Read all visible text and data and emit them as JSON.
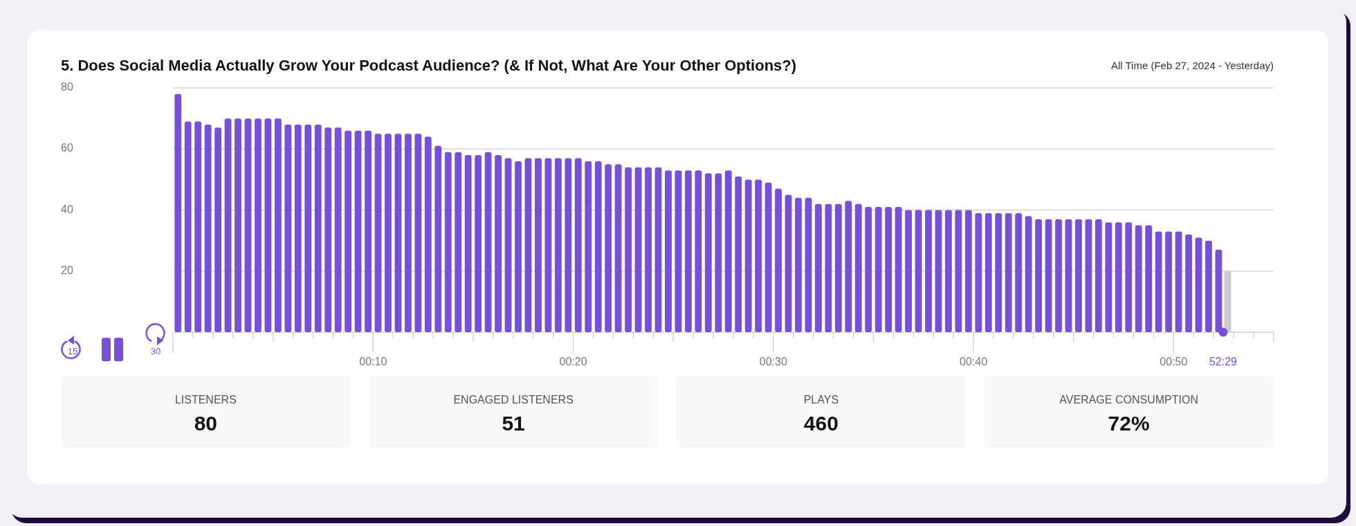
{
  "chart_data": {
    "type": "bar",
    "title": "5. Does Social Media Actually Grow Your Podcast Audience? (& If Not, What Are Your Other Options?)",
    "subtitle": "All Time (Feb 27, 2024 - Yesterday)",
    "x": [
      0.25,
      0.75,
      1.25,
      1.75,
      2.25,
      2.75,
      3.25,
      3.75,
      4.25,
      4.75,
      5.25,
      5.75,
      6.25,
      6.75,
      7.25,
      7.75,
      8.25,
      8.75,
      9.25,
      9.75,
      10.25,
      10.75,
      11.25,
      11.75,
      12.25,
      12.75,
      13.25,
      13.75,
      14.25,
      14.75,
      15.25,
      15.75,
      16.25,
      16.75,
      17.25,
      17.75,
      18.25,
      18.75,
      19.25,
      19.75,
      20.25,
      20.75,
      21.25,
      21.75,
      22.25,
      22.75,
      23.25,
      23.75,
      24.25,
      24.75,
      25.25,
      25.75,
      26.25,
      26.75,
      27.25,
      27.75,
      28.25,
      28.75,
      29.25,
      29.75,
      30.25,
      30.75,
      31.25,
      31.75,
      32.25,
      32.75,
      33.25,
      33.75,
      34.25,
      34.75,
      35.25,
      35.75,
      36.25,
      36.75,
      37.25,
      37.75,
      38.25,
      38.75,
      39.25,
      39.75,
      40.25,
      40.75,
      41.25,
      41.75,
      42.25,
      42.75,
      43.25,
      43.75,
      44.25,
      44.75,
      45.25,
      45.75,
      46.25,
      46.75,
      47.25,
      47.75,
      48.25,
      48.75,
      49.25,
      49.75,
      50.25,
      50.75,
      51.25,
      51.75,
      52.25,
      52.7
    ],
    "values": [
      78,
      69,
      69,
      68,
      67,
      70,
      70,
      70,
      70,
      70,
      70,
      68,
      68,
      68,
      68,
      67,
      67,
      66,
      66,
      66,
      65,
      65,
      65,
      65,
      65,
      64,
      61,
      59,
      59,
      58,
      58,
      59,
      58,
      57,
      56,
      57,
      57,
      57,
      57,
      57,
      57,
      56,
      56,
      55,
      55,
      54,
      54,
      54,
      54,
      53,
      53,
      53,
      53,
      52,
      52,
      53,
      51,
      50,
      50,
      49,
      47,
      45,
      44,
      44,
      42,
      42,
      42,
      43,
      42,
      41,
      41,
      41,
      41,
      40,
      40,
      40,
      40,
      40,
      40,
      40,
      39,
      39,
      39,
      39,
      39,
      38,
      37,
      37,
      37,
      37,
      37,
      37,
      37,
      36,
      36,
      36,
      35,
      35,
      33,
      33,
      33,
      32,
      31,
      30,
      27,
      20
    ],
    "colors": [
      "#7850d8",
      "#7850d8",
      "#7850d8",
      "#7850d8",
      "#7850d8",
      "#7850d8",
      "#7850d8",
      "#7850d8",
      "#7850d8",
      "#7850d8",
      "#7850d8",
      "#7850d8",
      "#7850d8",
      "#7850d8",
      "#7850d8",
      "#7850d8",
      "#7850d8",
      "#7850d8",
      "#7850d8",
      "#7850d8",
      "#7850d8",
      "#7850d8",
      "#7850d8",
      "#7850d8",
      "#7850d8",
      "#7850d8",
      "#7850d8",
      "#7850d8",
      "#7850d8",
      "#7850d8",
      "#7850d8",
      "#7850d8",
      "#7850d8",
      "#7850d8",
      "#7850d8",
      "#7850d8",
      "#7850d8",
      "#7850d8",
      "#7850d8",
      "#7850d8",
      "#7850d8",
      "#7850d8",
      "#7850d8",
      "#7850d8",
      "#7850d8",
      "#7850d8",
      "#7850d8",
      "#7850d8",
      "#7850d8",
      "#7850d8",
      "#7850d8",
      "#7850d8",
      "#7850d8",
      "#7850d8",
      "#7850d8",
      "#7850d8",
      "#7850d8",
      "#7850d8",
      "#7850d8",
      "#7850d8",
      "#7850d8",
      "#7850d8",
      "#7850d8",
      "#7850d8",
      "#7850d8",
      "#7850d8",
      "#7850d8",
      "#7850d8",
      "#7850d8",
      "#7850d8",
      "#7850d8",
      "#7850d8",
      "#7850d8",
      "#7850d8",
      "#7850d8",
      "#7850d8",
      "#7850d8",
      "#7850d8",
      "#7850d8",
      "#7850d8",
      "#7850d8",
      "#7850d8",
      "#7850d8",
      "#7850d8",
      "#7850d8",
      "#7850d8",
      "#7850d8",
      "#7850d8",
      "#7850d8",
      "#7850d8",
      "#7850d8",
      "#7850d8",
      "#7850d8",
      "#7850d8",
      "#7850d8",
      "#7850d8",
      "#7850d8",
      "#7850d8",
      "#7850d8",
      "#7850d8",
      "#7850d8",
      "#7850d8",
      "#7850d8",
      "#7850d8",
      "#7850d8",
      "#cccccc"
    ],
    "xlim": [
      0,
      55
    ],
    "xticks": [
      {
        "value": 1,
        "label": null
      },
      {
        "value": 2,
        "label": null
      },
      {
        "value": 3,
        "label": null
      },
      {
        "value": 4,
        "label": null
      },
      {
        "value": 5,
        "label": null
      },
      {
        "value": 6,
        "label": null
      },
      {
        "value": 7,
        "label": null
      },
      {
        "value": 8,
        "label": null
      },
      {
        "value": 9,
        "label": null
      },
      {
        "value": 10,
        "label": "00:10"
      },
      {
        "value": 11,
        "label": null
      },
      {
        "value": 12,
        "label": null
      },
      {
        "value": 13,
        "label": null
      },
      {
        "value": 14,
        "label": null
      },
      {
        "value": 15,
        "label": null
      },
      {
        "value": 16,
        "label": null
      },
      {
        "value": 17,
        "label": null
      },
      {
        "value": 18,
        "label": null
      },
      {
        "value": 19,
        "label": null
      },
      {
        "value": 20,
        "label": "00:20"
      },
      {
        "value": 21,
        "label": null
      },
      {
        "value": 22,
        "label": null
      },
      {
        "value": 23,
        "label": null
      },
      {
        "value": 24,
        "label": null
      },
      {
        "value": 25,
        "label": null
      },
      {
        "value": 26,
        "label": null
      },
      {
        "value": 27,
        "label": null
      },
      {
        "value": 28,
        "label": null
      },
      {
        "value": 29,
        "label": null
      },
      {
        "value": 30,
        "label": "00:30"
      },
      {
        "value": 31,
        "label": null
      },
      {
        "value": 32,
        "label": null
      },
      {
        "value": 33,
        "label": null
      },
      {
        "value": 34,
        "label": null
      },
      {
        "value": 35,
        "label": null
      },
      {
        "value": 36,
        "label": null
      },
      {
        "value": 37,
        "label": null
      },
      {
        "value": 38,
        "label": null
      },
      {
        "value": 39,
        "label": null
      },
      {
        "value": 40,
        "label": "00:40"
      },
      {
        "value": 41,
        "label": null
      },
      {
        "value": 42,
        "label": null
      },
      {
        "value": 43,
        "label": null
      },
      {
        "value": 44,
        "label": null
      },
      {
        "value": 45,
        "label": null
      },
      {
        "value": 46,
        "label": null
      },
      {
        "value": 47,
        "label": null
      },
      {
        "value": 48,
        "label": null
      },
      {
        "value": 49,
        "label": null
      },
      {
        "value": 50,
        "label": "00:50"
      },
      {
        "value": 51,
        "label": null
      },
      {
        "value": 52,
        "label": null
      },
      {
        "value": 53,
        "label": null
      },
      {
        "value": 54,
        "label": null
      },
      {
        "value": 55,
        "label": null
      }
    ],
    "ylim": [
      0,
      80
    ],
    "yticks": [
      20,
      40,
      60,
      80
    ],
    "grid": "y",
    "annotations": [
      "15",
      "30",
      "52:29",
      "LISTENERS",
      "80",
      "ENGAGED LISTENERS",
      "51",
      "PLAYS",
      "460",
      "AVERAGE CONSUMPTION",
      "72%"
    ]
  }
}
